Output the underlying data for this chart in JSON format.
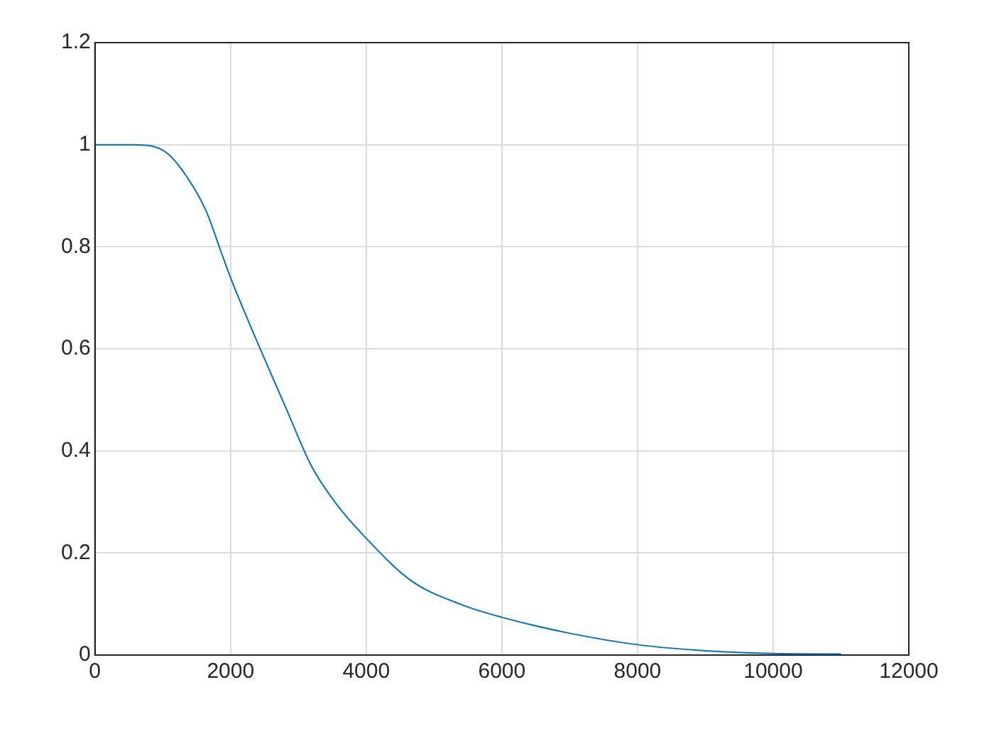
{
  "chart_data": {
    "type": "line",
    "x": [
      0,
      600,
      1050,
      1340,
      1640,
      1860,
      2010,
      2450,
      2820,
      3190,
      3560,
      4020,
      4660,
      5400,
      6000,
      6990,
      8020,
      9050,
      10000,
      11000
    ],
    "series": [
      {
        "color": "#0072bd",
        "values": [
          1,
          1,
          0.985,
          0.94,
          0.87,
          0.79,
          0.736,
          0.596,
          0.483,
          0.371,
          0.296,
          0.226,
          0.146,
          0.099,
          0.074,
          0.043,
          0.02,
          0.008,
          0.003,
          0.002
        ]
      }
    ],
    "xlim": [
      0,
      12000
    ],
    "xticks": [
      0,
      2000,
      4000,
      6000,
      8000,
      10000,
      12000
    ],
    "ylim": [
      0,
      1.2
    ],
    "yticks": [
      0,
      0.2,
      0.4,
      0.6,
      0.8,
      1,
      1.2
    ],
    "grid": true,
    "legend": false,
    "marker": "none",
    "line_style": "solid"
  }
}
